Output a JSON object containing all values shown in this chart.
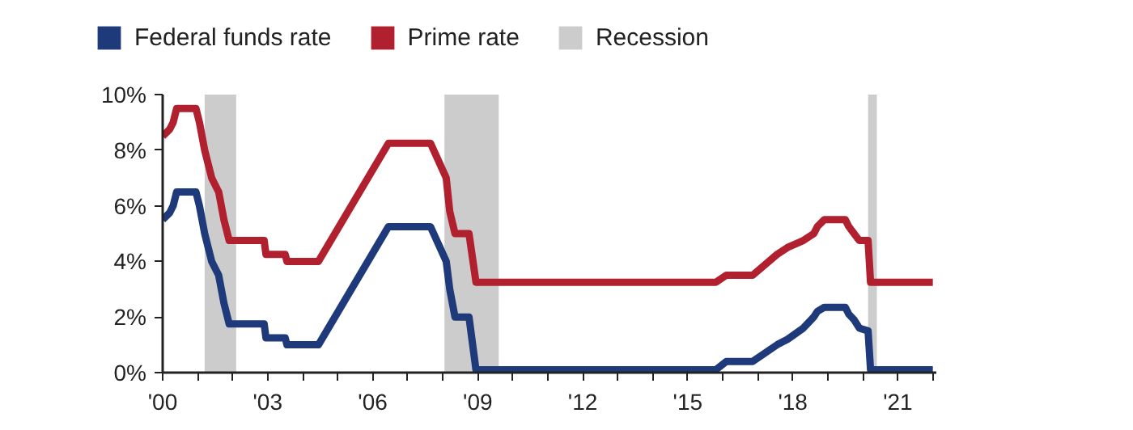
{
  "chart_data": {
    "type": "line",
    "xlim": [
      2000,
      2022.1
    ],
    "ylim": [
      0,
      10
    ],
    "xticks": [
      {
        "value": 2000,
        "label": "'00"
      },
      {
        "value": 2001,
        "label": null
      },
      {
        "value": 2002,
        "label": null
      },
      {
        "value": 2003,
        "label": "'03"
      },
      {
        "value": 2004,
        "label": null
      },
      {
        "value": 2005,
        "label": null
      },
      {
        "value": 2006,
        "label": "'06"
      },
      {
        "value": 2007,
        "label": null
      },
      {
        "value": 2008,
        "label": null
      },
      {
        "value": 2009,
        "label": "'09"
      },
      {
        "value": 2010,
        "label": null
      },
      {
        "value": 2011,
        "label": null
      },
      {
        "value": 2012,
        "label": "'12"
      },
      {
        "value": 2013,
        "label": null
      },
      {
        "value": 2014,
        "label": null
      },
      {
        "value": 2015,
        "label": "'15"
      },
      {
        "value": 2016,
        "label": null
      },
      {
        "value": 2017,
        "label": null
      },
      {
        "value": 2018,
        "label": "'18"
      },
      {
        "value": 2019,
        "label": null
      },
      {
        "value": 2020,
        "label": null
      },
      {
        "value": 2021,
        "label": "'21"
      },
      {
        "value": 2022,
        "label": null
      }
    ],
    "yticks": [
      {
        "value": 0,
        "label": "0%"
      },
      {
        "value": 2,
        "label": "2%"
      },
      {
        "value": 4,
        "label": "4%"
      },
      {
        "value": 6,
        "label": "6%"
      },
      {
        "value": 8,
        "label": "8%"
      },
      {
        "value": 10,
        "label": "10%"
      }
    ],
    "grid": false,
    "legend": "top",
    "marker": "none",
    "line_style": "solid",
    "series": [
      {
        "name": "Federal funds rate",
        "color": "#1f3a7a",
        "x": [
          2000.0,
          2000.2,
          2000.3,
          2000.4,
          2000.95,
          2001.05,
          2001.2,
          2001.4,
          2001.6,
          2001.75,
          2001.9,
          2002.9,
          2002.95,
          2003.5,
          2003.55,
          2004.45,
          2006.45,
          2007.65,
          2008.1,
          2008.2,
          2008.35,
          2008.75,
          2008.95,
          2015.8,
          2016.1,
          2016.85,
          2017.55,
          2017.85,
          2018.3,
          2018.6,
          2018.7,
          2018.9,
          2019.5,
          2019.6,
          2019.75,
          2019.9,
          2020.15,
          2020.22,
          2022.0
        ],
        "values": [
          5.5,
          5.75,
          6.0,
          6.5,
          6.5,
          6.0,
          5.0,
          4.0,
          3.5,
          2.5,
          1.75,
          1.75,
          1.25,
          1.25,
          1.0,
          1.0,
          5.25,
          5.25,
          4.0,
          3.0,
          2.0,
          2.0,
          0.1,
          0.1,
          0.4,
          0.4,
          1.0,
          1.2,
          1.6,
          2.0,
          2.2,
          2.35,
          2.35,
          2.1,
          1.9,
          1.6,
          1.5,
          0.1,
          0.1
        ]
      },
      {
        "name": "Prime rate",
        "color": "#b0202e",
        "x": [
          2000.0,
          2000.2,
          2000.3,
          2000.4,
          2000.95,
          2001.05,
          2001.2,
          2001.4,
          2001.6,
          2001.75,
          2001.9,
          2002.9,
          2002.95,
          2003.5,
          2003.55,
          2004.45,
          2006.45,
          2007.65,
          2008.1,
          2008.2,
          2008.35,
          2008.75,
          2008.95,
          2015.8,
          2016.1,
          2016.85,
          2017.55,
          2017.85,
          2018.3,
          2018.6,
          2018.7,
          2018.9,
          2019.5,
          2019.6,
          2019.75,
          2019.9,
          2020.15,
          2020.22,
          2022.0
        ],
        "values": [
          8.5,
          8.75,
          9.0,
          9.5,
          9.5,
          9.0,
          8.0,
          7.0,
          6.5,
          5.5,
          4.75,
          4.75,
          4.25,
          4.25,
          4.0,
          4.0,
          8.25,
          8.25,
          7.0,
          5.8,
          5.0,
          5.0,
          3.25,
          3.25,
          3.5,
          3.5,
          4.25,
          4.5,
          4.75,
          5.0,
          5.25,
          5.5,
          5.5,
          5.25,
          5.0,
          4.75,
          4.75,
          3.25,
          3.25
        ]
      }
    ],
    "bands": [
      {
        "axis": "x",
        "from": 2001.2,
        "to": 2002.1,
        "label": "Recession",
        "color": "#cccccc"
      },
      {
        "axis": "x",
        "from": 2008.05,
        "to": 2009.6,
        "color": "#cccccc"
      },
      {
        "axis": "x",
        "from": 2020.15,
        "to": 2020.4,
        "color": "#cccccc"
      }
    ]
  }
}
